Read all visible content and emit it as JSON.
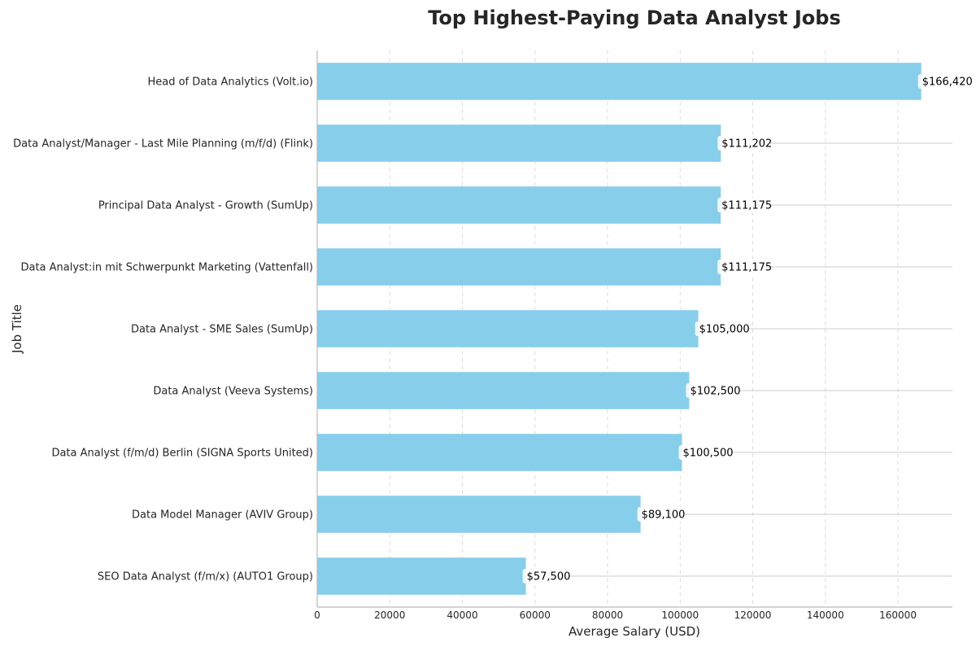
{
  "chart_data": {
    "type": "bar",
    "orientation": "horizontal",
    "title": "Top Highest-Paying Data Analyst Jobs",
    "xlabel": "Average Salary (USD)",
    "ylabel": "Job Title",
    "categories": [
      "Head of Data Analytics (Volt.io)",
      "Data Analyst/Manager - Last Mile Planning (m/f/d) (Flink)",
      "Principal Data Analyst - Growth (SumUp)",
      "Data Analyst:in mit Schwerpunkt Marketing (Vattenfall)",
      "Data Analyst - SME Sales (SumUp)",
      "Data Analyst (Veeva Systems)",
      "Data Analyst (f/m/d) Berlin (SIGNA Sports United)",
      "Data Model Manager (AVIV Group)",
      "SEO Data Analyst (f/m/x) (AUTO1 Group)"
    ],
    "values": [
      166420,
      111202,
      111175,
      111175,
      105000,
      102500,
      100500,
      89100,
      57500
    ],
    "data_labels": [
      "$166,420",
      "$111,202",
      "$111,175",
      "$111,175",
      "$105,000",
      "$102,500",
      "$100,500",
      "$89,100",
      "$57,500"
    ],
    "xlim": [
      0,
      175000
    ],
    "xticks": [
      0,
      20000,
      40000,
      60000,
      80000,
      100000,
      120000,
      140000,
      160000
    ],
    "xtick_labels": [
      "0",
      "20000",
      "40000",
      "60000",
      "80000",
      "100000",
      "120000",
      "140000",
      "160000"
    ],
    "grid": true,
    "colors": {
      "bar": "#87ceeb",
      "grid": "#dddddd",
      "axis": "#bbbbbb",
      "text": "#262626"
    }
  }
}
